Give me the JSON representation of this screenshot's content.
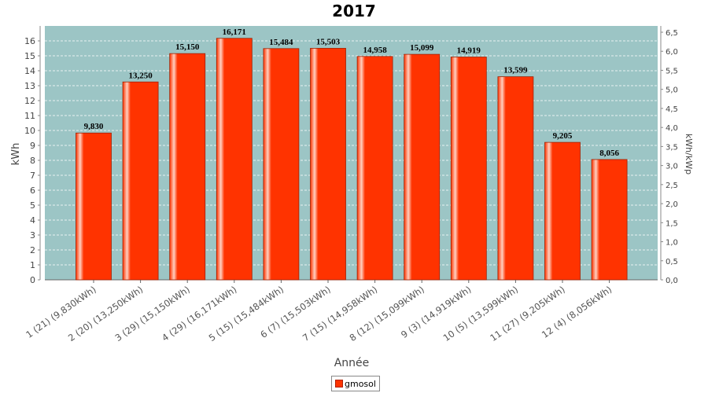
{
  "chart_data": {
    "type": "bar",
    "title": "2017",
    "xlabel": "Année",
    "ylabel": "kWh",
    "y2label": "kWh/kWp",
    "ylim": [
      0,
      17
    ],
    "yticks": [
      0,
      1,
      2,
      3,
      4,
      5,
      6,
      7,
      8,
      9,
      10,
      11,
      12,
      13,
      14,
      15,
      16
    ],
    "y2ticks": [
      "0,0",
      "0,5",
      "1,0",
      "1,5",
      "2,0",
      "2,5",
      "3,0",
      "3,5",
      "4,0",
      "4,5",
      "5,0",
      "5,5",
      "6,0",
      "6,5"
    ],
    "y2lim": [
      0,
      6.5
    ],
    "grid": true,
    "legend_position": "bottom",
    "categories": [
      "1 (21)  (9,830kWh)",
      "2 (20)  (13,250kWh)",
      "3 (29)  (15,150kWh)",
      "4 (29)  (16,171kWh)",
      "5 (15)  (15,484kWh)",
      "6 (7)  (15,503kWh)",
      "7 (15)  (14,958kWh)",
      "8 (12)  (15,099kWh)",
      "9 (3)  (14,919kWh)",
      "10 (5)  (13,599kWh)",
      "11 (27)  (9,205kWh)",
      "12 (4)  (8,056kWh)"
    ],
    "series": [
      {
        "name": "gmosol",
        "color": "#ff3300",
        "values": [
          9.83,
          13.25,
          15.15,
          16.171,
          15.484,
          15.503,
          14.958,
          15.099,
          14.919,
          13.599,
          9.205,
          8.056
        ],
        "labels": [
          "9,830",
          "13,250",
          "15,150",
          "16,171",
          "15,484",
          "15,503",
          "14,958",
          "15,099",
          "14,919",
          "13,599",
          "9,205",
          "8,056"
        ]
      }
    ],
    "plot_background": "#9cc5c5"
  }
}
